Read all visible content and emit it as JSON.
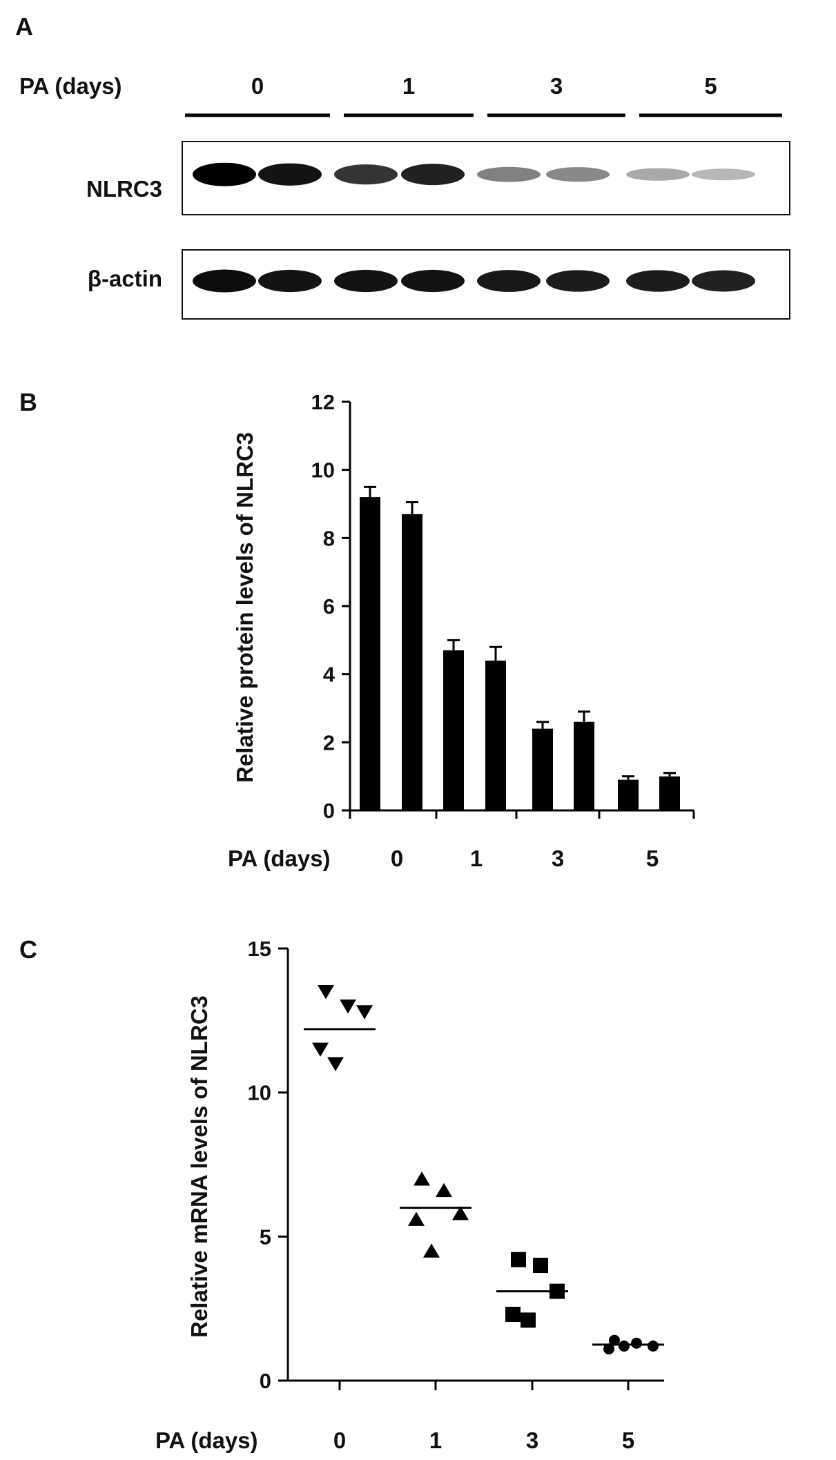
{
  "panels": {
    "a": {
      "letter": "A",
      "group_label": "PA (days)",
      "groups": [
        "0",
        "1",
        "3",
        "5"
      ],
      "blots": [
        {
          "label": "NLRC3",
          "intensities": [
            1.0,
            0.92,
            0.78,
            0.86,
            0.45,
            0.42,
            0.28,
            0.22
          ]
        },
        {
          "label": "β-actin",
          "intensities": [
            0.95,
            0.92,
            0.92,
            0.92,
            0.9,
            0.88,
            0.88,
            0.86
          ]
        }
      ]
    },
    "b": {
      "letter": "B",
      "chart_data": {
        "type": "bar",
        "title": "",
        "ylabel": "Relative protein levels of NLRC3",
        "xlabel": "PA (days)",
        "ylim": [
          0,
          12
        ],
        "yticks": [
          0,
          2,
          4,
          6,
          8,
          10,
          12
        ],
        "groups": [
          "0",
          "1",
          "3",
          "5"
        ],
        "values": [
          9.2,
          8.7,
          4.7,
          4.4,
          2.4,
          2.6,
          0.9,
          1.0
        ],
        "errors": [
          0.3,
          0.35,
          0.3,
          0.4,
          0.2,
          0.3,
          0.1,
          0.1
        ],
        "bar_color": "#000000"
      }
    },
    "c": {
      "letter": "C",
      "chart_data": {
        "type": "scatter",
        "title": "",
        "ylabel": "Relative mRNA levels of NLRC3",
        "xlabel": "PA (days)",
        "ylim": [
          0,
          15
        ],
        "yticks": [
          0,
          5,
          10,
          15
        ],
        "groups": [
          "0",
          "1",
          "3",
          "5"
        ],
        "series": [
          {
            "group": "0",
            "marker": "triangle-down",
            "values": [
              13.5,
              13.0,
              12.8,
              11.5,
              11.0
            ],
            "mean": 12.2
          },
          {
            "group": "1",
            "marker": "triangle-up",
            "values": [
              7.0,
              6.6,
              5.8,
              5.6,
              4.5
            ],
            "mean": 6.0
          },
          {
            "group": "3",
            "marker": "square",
            "values": [
              4.2,
              4.0,
              3.1,
              2.3,
              2.1
            ],
            "mean": 3.1
          },
          {
            "group": "5",
            "marker": "circle",
            "values": [
              1.4,
              1.3,
              1.2,
              1.1,
              1.2
            ],
            "mean": 1.25
          }
        ]
      }
    }
  }
}
